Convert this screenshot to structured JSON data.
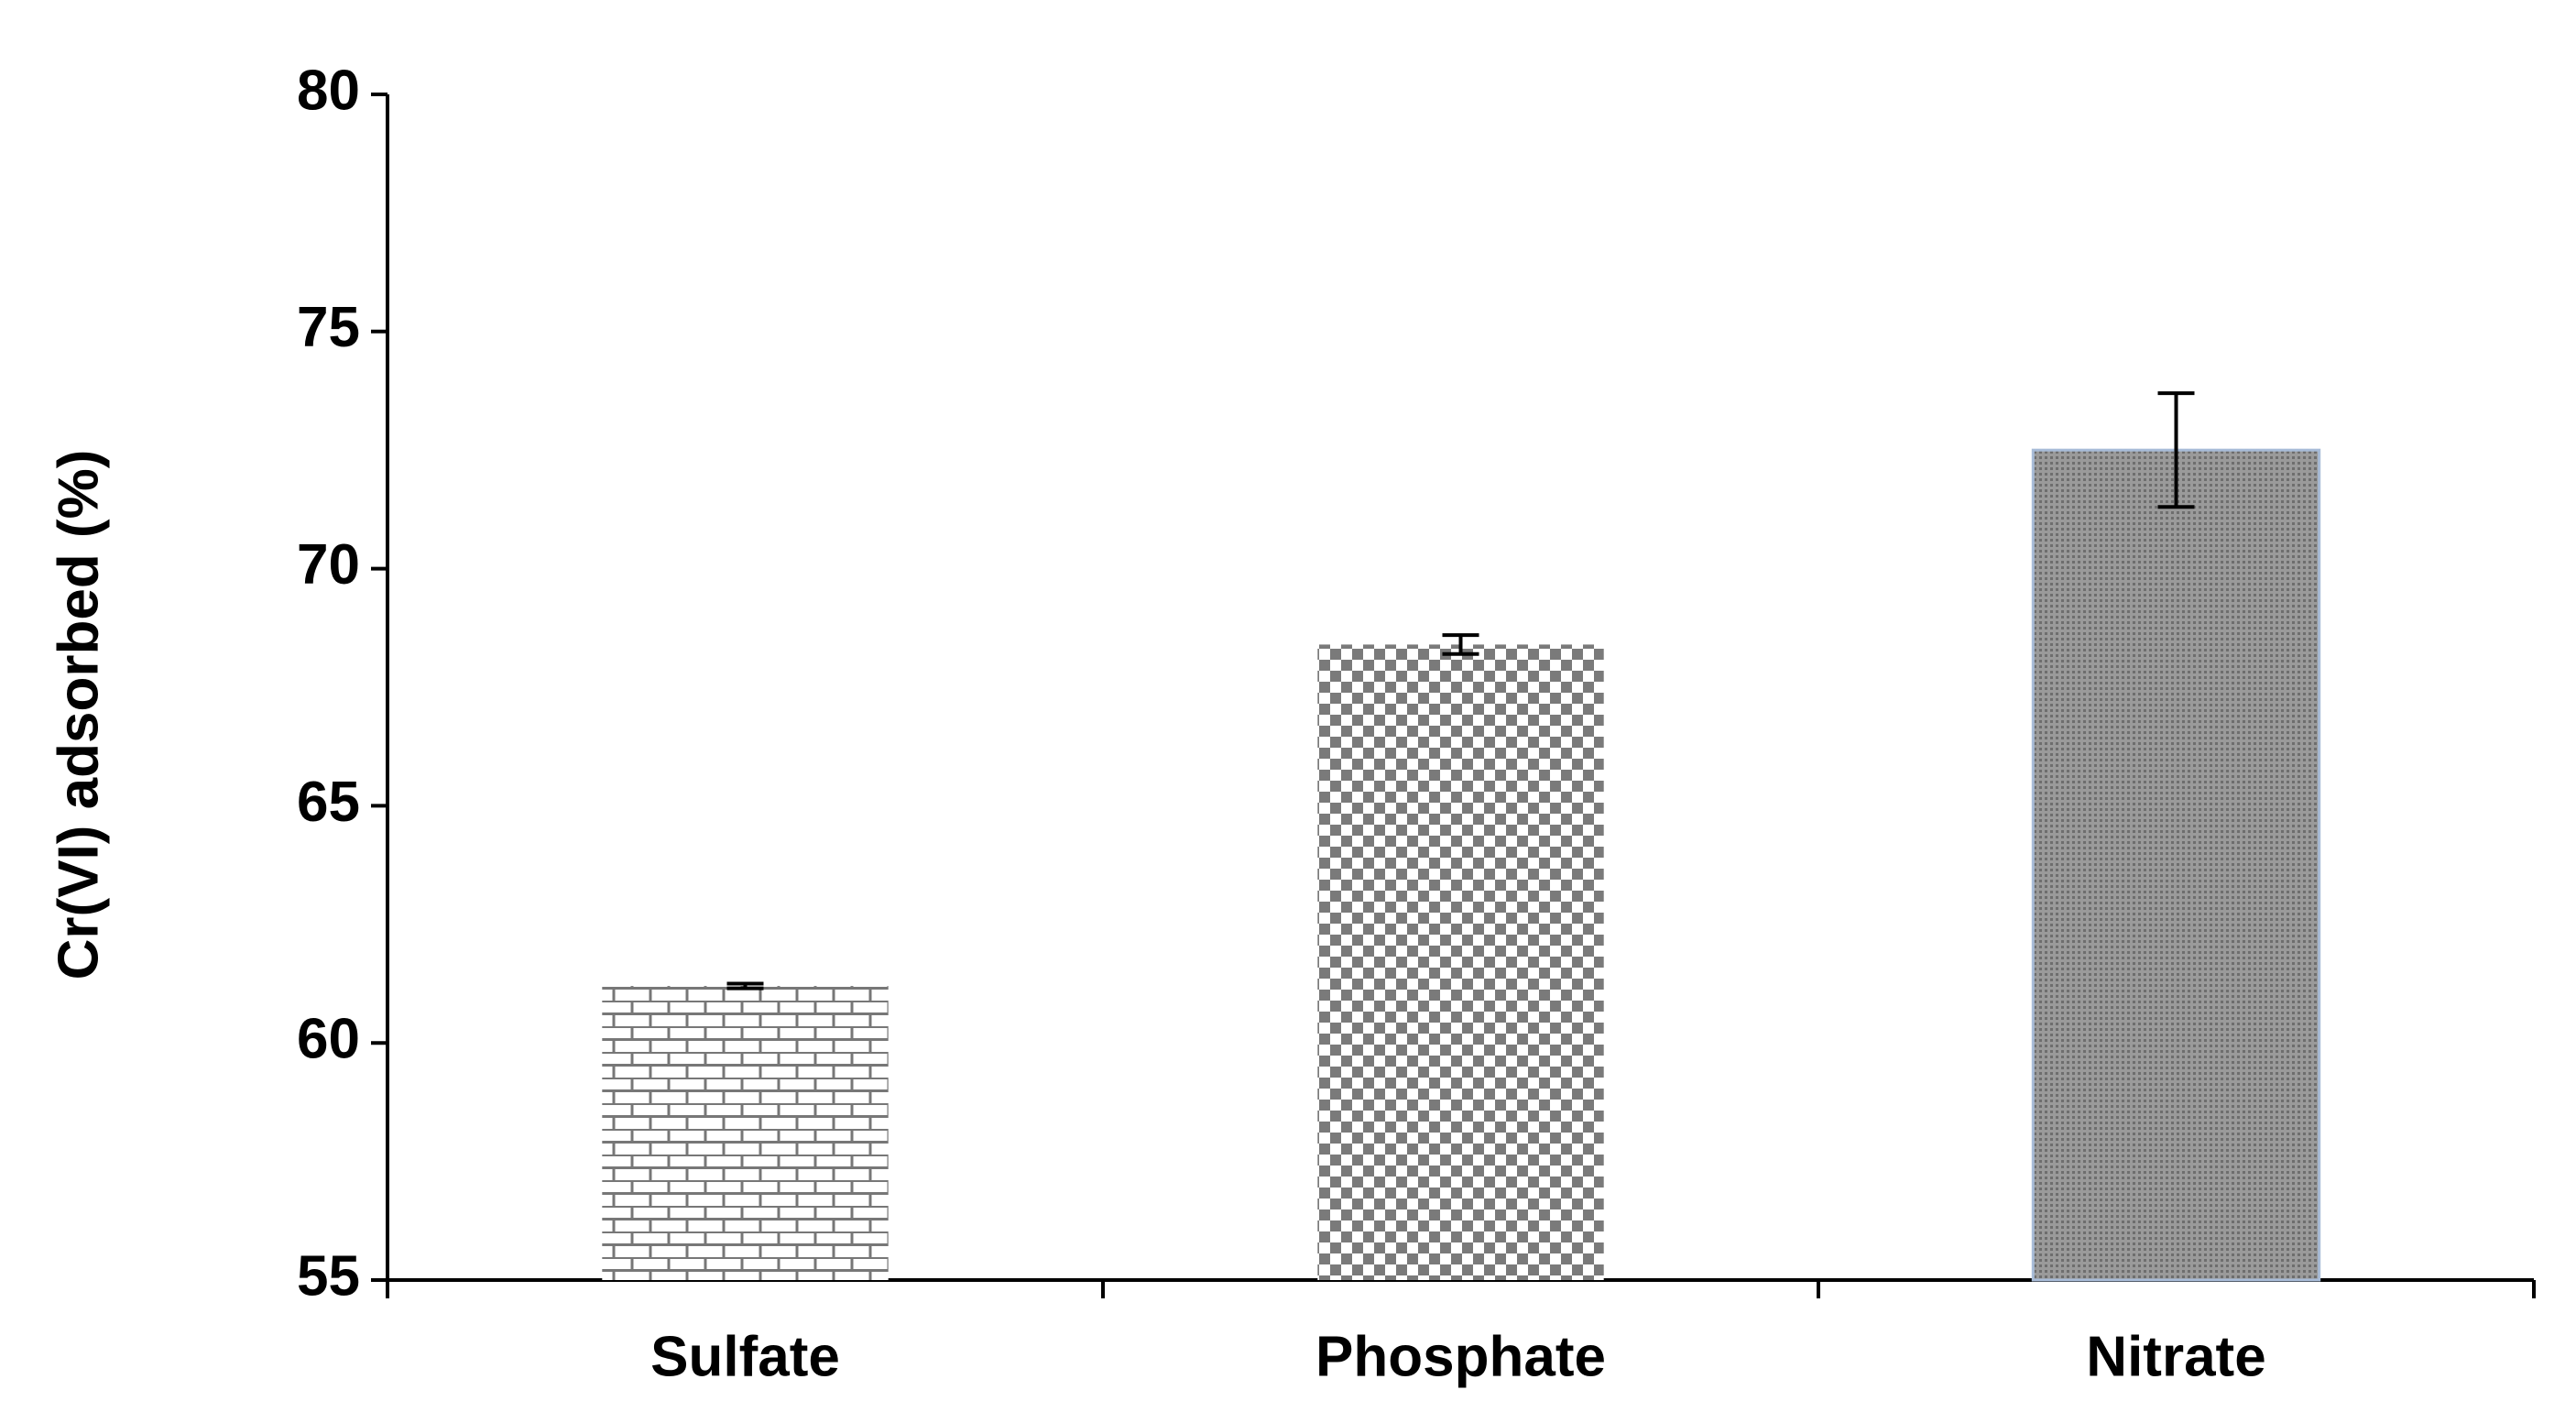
{
  "chart_data": {
    "type": "bar",
    "y_label": "Cr(VI) adsorbed (%)",
    "categories": [
      "Sulfate",
      "Phosphate",
      "Nitrate"
    ],
    "values": [
      61.2,
      68.4,
      72.5
    ],
    "errors": [
      0.05,
      0.2,
      1.2
    ],
    "color": "#808080",
    "ylim": [
      55,
      80
    ],
    "yticks": [
      55,
      60,
      65,
      70,
      75,
      80
    ],
    "grid": false
  }
}
